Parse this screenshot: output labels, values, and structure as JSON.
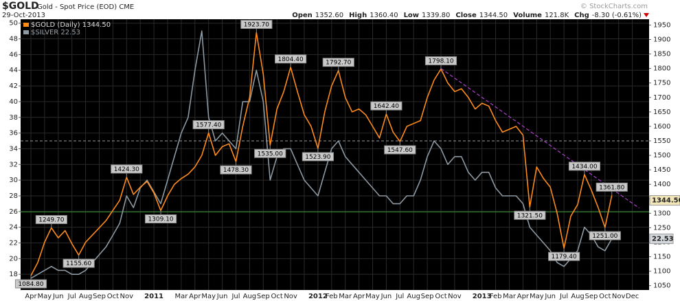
{
  "chart_data": {
    "type": "line",
    "title": "$GOLD",
    "subtitle": "Gold - Spot Price (EOD) CME",
    "date": "29-Oct-2013",
    "watermark": "© StockCharts.com",
    "quote": [
      {
        "label": "Open",
        "value": "1352.60"
      },
      {
        "label": "High",
        "value": "1360.40"
      },
      {
        "label": "Low",
        "value": "1339.80"
      },
      {
        "label": "Close",
        "value": "1344.50"
      },
      {
        "label": "Volume",
        "value": "121.8K"
      },
      {
        "label": "Chg",
        "value": "-8.30 (-0.61%)"
      }
    ],
    "categories": [
      "Apr",
      null,
      "May",
      null,
      "Jun",
      null,
      "Jul",
      null,
      "Aug",
      null,
      "Sep",
      null,
      "Oct",
      null,
      "Nov",
      null,
      null,
      null,
      "2011",
      null,
      null,
      null,
      "Mar",
      null,
      "Apr",
      null,
      "May",
      null,
      "Jun",
      null,
      "Jul",
      null,
      "Aug",
      null,
      "Sep",
      null,
      "Oct",
      null,
      "Nov",
      null,
      null,
      null,
      "2012",
      null,
      "Feb",
      null,
      "Mar",
      null,
      "Apr",
      null,
      "May",
      null,
      "Jun",
      null,
      "Jul",
      null,
      "Aug",
      null,
      "Sep",
      null,
      "Oct",
      null,
      "Nov",
      null,
      null,
      null,
      "2013",
      null,
      "Feb",
      null,
      "Mar",
      null,
      "Apr",
      null,
      "May",
      null,
      "Jun",
      null,
      "Jul",
      null,
      "Aug",
      null,
      "Sep",
      null,
      "Oct",
      null,
      "Nov",
      null,
      "Dec",
      null
    ],
    "series": [
      {
        "name": "$GOLD (Daily) 1344.50",
        "color": "#ff8c1a",
        "axis": "y",
        "values": [
          1084.8,
          1130,
          1200,
          1249.7,
          1215,
          1240,
          1195,
          1155.6,
          1200,
          1225,
          1250,
          1275,
          1310,
          1345,
          1424.3,
          1365,
          1390,
          1410,
          1370,
          1309.1,
          1360,
          1400,
          1420,
          1435,
          1460,
          1500,
          1577.4,
          1500,
          1530,
          1540,
          1478.3,
          1600,
          1700,
          1923.7,
          1780,
          1535.0,
          1660,
          1720,
          1804.4,
          1720,
          1640,
          1600,
          1523.9,
          1650,
          1740,
          1792.7,
          1700,
          1650,
          1660,
          1640,
          1600,
          1560,
          1642.4,
          1580,
          1547.6,
          1600,
          1610,
          1620,
          1700,
          1760,
          1798.1,
          1750,
          1720,
          1730,
          1700,
          1660,
          1680,
          1670,
          1620,
          1580,
          1590,
          1600,
          1570,
          1321.5,
          1460,
          1420,
          1390,
          1300,
          1179.4,
          1290,
          1330,
          1434,
          1380,
          1320,
          1251,
          1361.8,
          null,
          null,
          null,
          null
        ],
        "value_labels": [
          "1084.80",
          null,
          null,
          "1249.70",
          null,
          null,
          null,
          "1155.60",
          null,
          null,
          null,
          null,
          null,
          null,
          "1424.30",
          null,
          null,
          null,
          null,
          "1309.10",
          null,
          null,
          null,
          null,
          null,
          null,
          "1577.40",
          null,
          null,
          null,
          "1478.30",
          null,
          null,
          "1923.70",
          null,
          "1535.00",
          null,
          null,
          "1804.40",
          null,
          null,
          null,
          "1523.90",
          null,
          null,
          "1792.70",
          null,
          null,
          null,
          null,
          null,
          null,
          "1642.40",
          null,
          "1547.60",
          null,
          null,
          null,
          null,
          null,
          "1798.10",
          null,
          null,
          null,
          null,
          null,
          null,
          null,
          null,
          null,
          null,
          null,
          null,
          "1321.50",
          null,
          null,
          null,
          null,
          "1179.40",
          null,
          null,
          "1434.00",
          null,
          null,
          "1251.00",
          "1361.80",
          null,
          null,
          null,
          null
        ]
      },
      {
        "name": "$SILVER 22.53",
        "color": "#8d99a3",
        "axis": "y2",
        "values": [
          17.5,
          18,
          18.5,
          19,
          18.5,
          18.5,
          18,
          18,
          18.5,
          19.5,
          20.5,
          21.5,
          23,
          24.5,
          28,
          26.5,
          29,
          30,
          28.5,
          27,
          30,
          33,
          36,
          38,
          44,
          49,
          38,
          35,
          36,
          35,
          34,
          40,
          40,
          44,
          40,
          30,
          33,
          34,
          34,
          32,
          30,
          29,
          28,
          31,
          34,
          35,
          33,
          32,
          31,
          30,
          29,
          28,
          28,
          27,
          27,
          28,
          28,
          30,
          33,
          35,
          34,
          32,
          33,
          33,
          31,
          30,
          31,
          31,
          29,
          28,
          28,
          28,
          27,
          24,
          23,
          22,
          21,
          19.5,
          19,
          20,
          21,
          24,
          23,
          21.5,
          21,
          22.53,
          null,
          null,
          null,
          null
        ]
      }
    ],
    "ylim": [
      1035,
      1970
    ],
    "yticks": [
      1050,
      1100,
      1150,
      1200,
      1250,
      1300,
      1350,
      1400,
      1450,
      1500,
      1550,
      1600,
      1650,
      1700,
      1750,
      1800,
      1850,
      1900,
      1950
    ],
    "y2lim": [
      16,
      50.5
    ],
    "y2ticks": [
      18,
      20,
      22,
      24,
      26,
      28,
      30,
      32,
      34,
      36,
      38,
      40,
      42,
      44,
      46,
      48,
      50
    ],
    "grid": true,
    "hlines": [
      {
        "value": 1550,
        "color": "#9a9a9a",
        "dashed": true
      },
      {
        "value": 1305,
        "color": "#3c9a3c",
        "dashed": false
      }
    ],
    "trendline": {
      "x": [
        60,
        89
      ],
      "values": [
        1800,
        1318
      ],
      "color": "#b040d0"
    },
    "legend": "top-left"
  }
}
